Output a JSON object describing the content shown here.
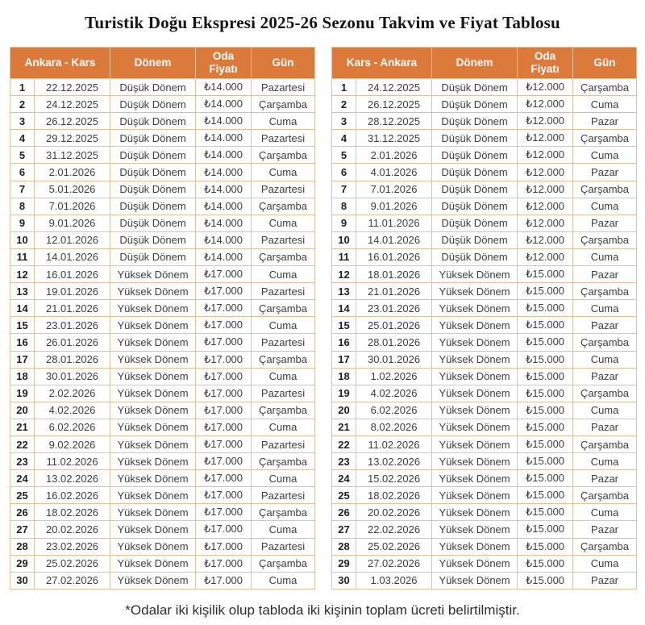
{
  "title": "Turistik Doğu Ekspresi 2025-26 Sezonu Takvim ve Fiyat Tablosu",
  "footnote": "*Odalar iki kişilik olup tabloda iki kişinin toplam ücreti belirtilmiştir.",
  "colors": {
    "header_bg": "#dc7a3b",
    "header_text": "#ffffff",
    "border": "#e2bf9d",
    "body_text": "#3d3d3d"
  },
  "column_headers": {
    "period": "Dönem",
    "price": "Oda Fiyatı",
    "day": "Gün"
  },
  "tables": [
    {
      "route": "Ankara - Kars",
      "rows": [
        [
          "1",
          "22.12.2025",
          "Düşük Dönem",
          "₺14.000",
          "Pazartesi"
        ],
        [
          "2",
          "24.12.2025",
          "Düşük Dönem",
          "₺14.000",
          "Çarşamba"
        ],
        [
          "3",
          "26.12.2025",
          "Düşük Dönem",
          "₺14.000",
          "Cuma"
        ],
        [
          "4",
          "29.12.2025",
          "Düşük Dönem",
          "₺14.000",
          "Pazartesi"
        ],
        [
          "5",
          "31.12.2025",
          "Düşük Dönem",
          "₺14.000",
          "Çarşamba"
        ],
        [
          "6",
          "2.01.2026",
          "Düşük Dönem",
          "₺14.000",
          "Cuma"
        ],
        [
          "7",
          "5.01.2026",
          "Düşük Dönem",
          "₺14.000",
          "Pazartesi"
        ],
        [
          "8",
          "7.01.2026",
          "Düşük Dönem",
          "₺14.000",
          "Çarşamba"
        ],
        [
          "9",
          "9.01.2026",
          "Düşük Dönem",
          "₺14.000",
          "Cuma"
        ],
        [
          "10",
          "12.01.2026",
          "Düşük Dönem",
          "₺14.000",
          "Pazartesi"
        ],
        [
          "11",
          "14.01.2026",
          "Düşük Dönem",
          "₺14.000",
          "Çarşamba"
        ],
        [
          "12",
          "16.01.2026",
          "Yüksek Dönem",
          "₺17.000",
          "Cuma"
        ],
        [
          "13",
          "19.01.2026",
          "Yüksek Dönem",
          "₺17.000",
          "Pazartesi"
        ],
        [
          "14",
          "21.01.2026",
          "Yüksek Dönem",
          "₺17.000",
          "Çarşamba"
        ],
        [
          "15",
          "23.01.2026",
          "Yüksek Dönem",
          "₺17.000",
          "Cuma"
        ],
        [
          "16",
          "26.01.2026",
          "Yüksek Dönem",
          "₺17.000",
          "Pazartesi"
        ],
        [
          "17",
          "28.01.2026",
          "Yüksek Dönem",
          "₺17.000",
          "Çarşamba"
        ],
        [
          "18",
          "30.01.2026",
          "Yüksek Dönem",
          "₺17.000",
          "Cuma"
        ],
        [
          "19",
          "2.02.2026",
          "Yüksek Dönem",
          "₺17.000",
          "Pazartesi"
        ],
        [
          "20",
          "4.02.2026",
          "Yüksek Dönem",
          "₺17.000",
          "Çarşamba"
        ],
        [
          "21",
          "6.02.2026",
          "Yüksek Dönem",
          "₺17.000",
          "Cuma"
        ],
        [
          "22",
          "9.02.2026",
          "Yüksek Dönem",
          "₺17.000",
          "Pazartesi"
        ],
        [
          "23",
          "11.02.2026",
          "Yüksek Dönem",
          "₺17.000",
          "Çarşamba"
        ],
        [
          "24",
          "13.02.2026",
          "Yüksek Dönem",
          "₺17.000",
          "Cuma"
        ],
        [
          "25",
          "16.02.2026",
          "Yüksek Dönem",
          "₺17.000",
          "Pazartesi"
        ],
        [
          "26",
          "18.02.2026",
          "Yüksek Dönem",
          "₺17.000",
          "Çarşamba"
        ],
        [
          "27",
          "20.02.2026",
          "Yüksek Dönem",
          "₺17.000",
          "Cuma"
        ],
        [
          "28",
          "23.02.2026",
          "Yüksek Dönem",
          "₺17.000",
          "Pazartesi"
        ],
        [
          "29",
          "25.02.2026",
          "Yüksek Dönem",
          "₺17.000",
          "Çarşamba"
        ],
        [
          "30",
          "27.02.2026",
          "Yüksek Dönem",
          "₺17.000",
          "Cuma"
        ]
      ]
    },
    {
      "route": "Kars - Ankara",
      "rows": [
        [
          "1",
          "24.12.2025",
          "Düşük Dönem",
          "₺12.000",
          "Çarşamba"
        ],
        [
          "2",
          "26.12.2025",
          "Düşük Dönem",
          "₺12.000",
          "Cuma"
        ],
        [
          "3",
          "28.12.2025",
          "Düşük Dönem",
          "₺12.000",
          "Pazar"
        ],
        [
          "4",
          "31.12.2025",
          "Düşük Dönem",
          "₺12.000",
          "Çarşamba"
        ],
        [
          "5",
          "2.01.2026",
          "Düşük Dönem",
          "₺12.000",
          "Cuma"
        ],
        [
          "6",
          "4.01.2026",
          "Düşük Dönem",
          "₺12.000",
          "Pazar"
        ],
        [
          "7",
          "7.01.2026",
          "Düşük Dönem",
          "₺12.000",
          "Çarşamba"
        ],
        [
          "8",
          "9.01.2026",
          "Düşük Dönem",
          "₺12.000",
          "Cuma"
        ],
        [
          "9",
          "11.01.2026",
          "Düşük Dönem",
          "₺12.000",
          "Pazar"
        ],
        [
          "10",
          "14.01.2026",
          "Düşük Dönem",
          "₺12.000",
          "Çarşamba"
        ],
        [
          "11",
          "16.01.2026",
          "Düşük Dönem",
          "₺12.000",
          "Cuma"
        ],
        [
          "12",
          "18.01.2026",
          "Yüksek Dönem",
          "₺15.000",
          "Pazar"
        ],
        [
          "13",
          "21.01.2026",
          "Yüksek Dönem",
          "₺15.000",
          "Çarşamba"
        ],
        [
          "14",
          "23.01.2026",
          "Yüksek Dönem",
          "₺15.000",
          "Cuma"
        ],
        [
          "15",
          "25.01.2026",
          "Yüksek Dönem",
          "₺15.000",
          "Pazar"
        ],
        [
          "16",
          "28.01.2026",
          "Yüksek Dönem",
          "₺15.000",
          "Çarşamba"
        ],
        [
          "17",
          "30.01.2026",
          "Yüksek Dönem",
          "₺15.000",
          "Cuma"
        ],
        [
          "18",
          "1.02.2026",
          "Yüksek Dönem",
          "₺15.000",
          "Pazar"
        ],
        [
          "19",
          "4.02.2026",
          "Yüksek Dönem",
          "₺15.000",
          "Çarşamba"
        ],
        [
          "20",
          "6.02.2026",
          "Yüksek Dönem",
          "₺15.000",
          "Cuma"
        ],
        [
          "21",
          "8.02.2026",
          "Yüksek Dönem",
          "₺15.000",
          "Pazar"
        ],
        [
          "22",
          "11.02.2026",
          "Yüksek Dönem",
          "₺15.000",
          "Çarşamba"
        ],
        [
          "23",
          "13.02.2026",
          "Yüksek Dönem",
          "₺15.000",
          "Cuma"
        ],
        [
          "24",
          "15.02.2026",
          "Yüksek Dönem",
          "₺15.000",
          "Pazar"
        ],
        [
          "25",
          "18.02.2026",
          "Yüksek Dönem",
          "₺15.000",
          "Çarşamba"
        ],
        [
          "26",
          "20.02.2026",
          "Yüksek Dönem",
          "₺15.000",
          "Cuma"
        ],
        [
          "27",
          "22.02.2026",
          "Yüksek Dönem",
          "₺15.000",
          "Pazar"
        ],
        [
          "28",
          "25.02.2026",
          "Yüksek Dönem",
          "₺15.000",
          "Çarşamba"
        ],
        [
          "29",
          "27.02.2026",
          "Yüksek Dönem",
          "₺15.000",
          "Cuma"
        ],
        [
          "30",
          "1.03.2026",
          "Yüksek Dönem",
          "₺15.000",
          "Pazar"
        ]
      ]
    }
  ]
}
